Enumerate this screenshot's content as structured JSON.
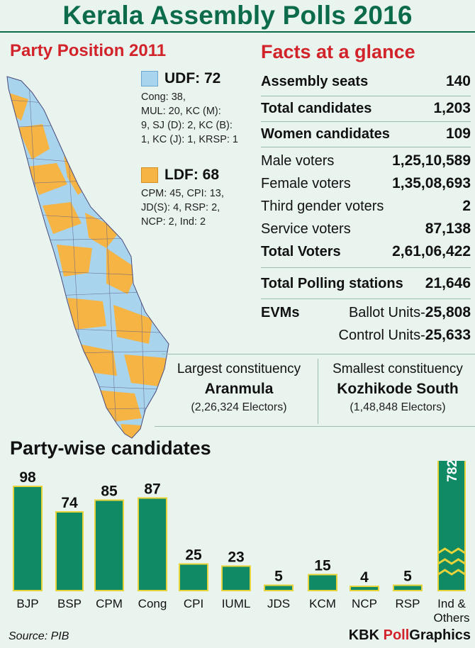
{
  "title": "Kerala Assembly Polls 2016",
  "map_section": {
    "heading": "Party Position 2011",
    "udf": {
      "label": "UDF: 72",
      "detail": [
        "Cong: 38,",
        "MUL: 20, KC (M):",
        "9, SJ (D): 2, KC (B):",
        "1, KC (J): 1, KRSP: 1"
      ],
      "color": "#a8d4ee"
    },
    "ldf": {
      "label": "LDF: 68",
      "detail": [
        "CPM: 45,  CPI: 13,",
        "JD(S): 4,  RSP: 2,",
        "NCP: 2,  Ind: 2"
      ],
      "color": "#f5b444"
    }
  },
  "facts": {
    "heading": "Facts at a glance",
    "rows": [
      {
        "label": "Assembly seats",
        "value": "140",
        "bold": true
      },
      {
        "label": "Total candidates",
        "value": "1,203",
        "bold": true
      },
      {
        "label": "Women candidates",
        "value": "109",
        "bold": true
      },
      {
        "label": "Male voters",
        "value": "1,25,10,589",
        "bold": false
      },
      {
        "label": "Female voters",
        "value": "1,35,08,693",
        "bold": false
      },
      {
        "label": "Third gender voters",
        "value": "2",
        "bold": false
      },
      {
        "label": "Service voters",
        "value": "87,138",
        "bold": false
      },
      {
        "label": "Total Voters",
        "value": "2,61,06,422",
        "bold": true
      },
      {
        "label": "Total Polling stations",
        "value": "21,646",
        "bold": true
      }
    ],
    "evms": {
      "label": "EVMs",
      "ballot_label": "Ballot Units-",
      "ballot_value": "25,808",
      "control_label": "Control Units-",
      "control_value": "25,633"
    }
  },
  "constituencies": {
    "largest": {
      "title": "Largest constituency",
      "name": "Aranmula",
      "electors": "(2,26,324 Electors)"
    },
    "smallest": {
      "title": "Smallest constituency",
      "name": "Kozhikode South",
      "electors": "(1,48,848 Electors)"
    }
  },
  "chart_data": {
    "type": "bar",
    "title": "Party-wise candidates",
    "categories": [
      "BJP",
      "BSP",
      "CPM",
      "Cong",
      "CPI",
      "IUML",
      "JDS",
      "KCM",
      "NCP",
      "RSP",
      "Ind & Others"
    ],
    "values": [
      98,
      74,
      85,
      87,
      25,
      23,
      5,
      15,
      4,
      5,
      782
    ],
    "broken_axis_category": "Ind & Others",
    "bar_color": "#0f8a64",
    "bar_border_color": "#e8d43a"
  },
  "footer": {
    "source": "Source: PIB",
    "brand_a": "KBK ",
    "brand_b": "Poll",
    "brand_c": "Graphics"
  }
}
